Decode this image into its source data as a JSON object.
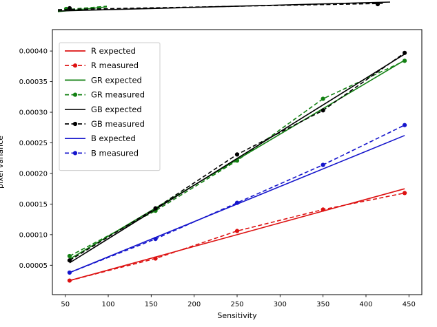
{
  "chart_data": {
    "type": "line",
    "title": "",
    "xlabel": "Sensitivity",
    "ylabel": "pixel variance",
    "grid": false,
    "legend_position": "upper-left",
    "xlim": [
      35,
      465
    ],
    "ylim": [
      2e-06,
      0.000435
    ],
    "xticks": [
      50,
      100,
      150,
      200,
      250,
      300,
      350,
      400,
      450
    ],
    "yticks": [
      5e-05,
      0.0001,
      0.00015,
      0.0002,
      0.00025,
      0.0003,
      0.00035,
      0.0004
    ],
    "series": [
      {
        "name": "R expected",
        "color": "#dd1111",
        "style": "solid",
        "marker": false,
        "x": [
          55,
          445
        ],
        "values": [
          2.5e-05,
          0.000175
        ]
      },
      {
        "name": "R measured",
        "color": "#dd1111",
        "style": "dashed",
        "marker": true,
        "x": [
          55,
          155,
          250,
          350,
          445
        ],
        "values": [
          2.5e-05,
          6.1e-05,
          0.000106,
          0.000141,
          0.000168
        ]
      },
      {
        "name": "GR expected",
        "color": "#128012",
        "style": "solid",
        "marker": false,
        "x": [
          55,
          445
        ],
        "values": [
          6e-05,
          0.000385
        ]
      },
      {
        "name": "GR measured",
        "color": "#128012",
        "style": "dashed",
        "marker": true,
        "x": [
          55,
          155,
          250,
          350,
          445
        ],
        "values": [
          6.5e-05,
          0.000139,
          0.000221,
          0.000322,
          0.000384
        ]
      },
      {
        "name": "GB expected",
        "color": "#000000",
        "style": "solid",
        "marker": false,
        "x": [
          55,
          445
        ],
        "values": [
          5.4e-05,
          0.000395
        ]
      },
      {
        "name": "GB measured",
        "color": "#000000",
        "style": "dashed",
        "marker": true,
        "x": [
          55,
          155,
          250,
          350,
          445
        ],
        "values": [
          5.8e-05,
          0.000143,
          0.000231,
          0.000303,
          0.000397
        ]
      },
      {
        "name": "B expected",
        "color": "#1515cc",
        "style": "solid",
        "marker": false,
        "x": [
          55,
          445
        ],
        "values": [
          3.8e-05,
          0.000262
        ]
      },
      {
        "name": "B measured",
        "color": "#1515cc",
        "style": "dashed",
        "marker": true,
        "x": [
          55,
          155,
          250,
          350,
          445
        ],
        "values": [
          3.8e-05,
          9.3e-05,
          0.000152,
          0.000214,
          0.000279
        ]
      }
    ],
    "top_sliver": {
      "lines": [
        {
          "color": "#128012",
          "style": "solid",
          "points": [
            [
              84,
              17
            ],
            [
              155,
              10
            ]
          ],
          "markers": []
        },
        {
          "color": "#128012",
          "style": "dashed",
          "points": [
            [
              84,
              15
            ],
            [
              155,
              9
            ]
          ],
          "markers": [
            [
              96,
              13
            ]
          ]
        },
        {
          "color": "#000000",
          "style": "solid",
          "points": [
            [
              84,
              16
            ],
            [
              566,
              3
            ]
          ],
          "markers": []
        },
        {
          "color": "#000000",
          "style": "dashed",
          "points": [
            [
              84,
              14
            ],
            [
              556,
              5
            ]
          ],
          "markers": [
            [
              101,
              12
            ],
            [
              548,
              6
            ]
          ]
        }
      ]
    }
  }
}
